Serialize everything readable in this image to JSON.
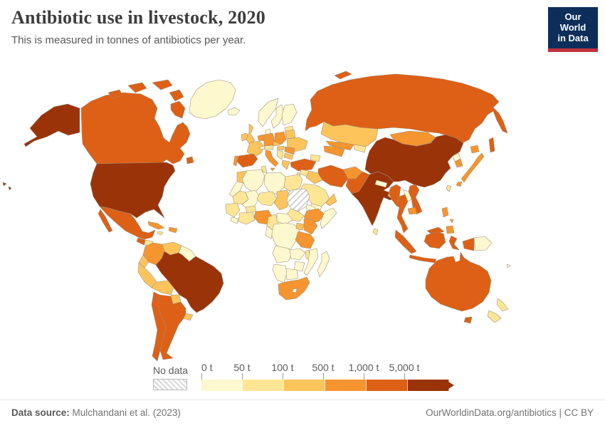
{
  "header": {
    "title": "Antibiotic use in livestock, 2020",
    "subtitle": "This is measured in tonnes of antibiotics per year.",
    "logo": {
      "line1": "Our World",
      "line2": "in Data",
      "bg_color": "#0d2e5a",
      "accent_color": "#c0313d"
    }
  },
  "footer": {
    "source_label": "Data source:",
    "source_value": " Mulchandani et al. (2023)",
    "link_text": "OurWorldinData.org/antibiotics | CC BY"
  },
  "chart_data": {
    "type": "choropleth-map",
    "title": "Antibiotic use in livestock, 2020",
    "unit": "tonnes of antibiotics per year",
    "year": 2020,
    "legend": {
      "no_data_label": "No data",
      "tick_labels": [
        "0 t",
        "50 t",
        "100 t",
        "500 t",
        "1,000 t",
        "5,000 t"
      ],
      "bin_colors": [
        "#fdf8cd",
        "#fee695",
        "#fdc45c",
        "#f6952f",
        "#dd6016",
        "#9b3309"
      ],
      "bin_ranges_tonnes": [
        [
          0,
          50
        ],
        [
          50,
          100
        ],
        [
          100,
          500
        ],
        [
          500,
          1000
        ],
        [
          1000,
          5000
        ],
        [
          5000,
          null
        ]
      ],
      "arrow_color": "#9b3309",
      "position": "bottom"
    },
    "countries": {
      "greenland": 1,
      "iceland": 1,
      "canada": 5,
      "usa": 6,
      "mexico": 5,
      "guatemala": 5,
      "honduras": 2,
      "nicaragua": 3,
      "costa-rica": 2,
      "panama": 3,
      "cuba": 4,
      "hispaniola": 4,
      "jamaica": 2,
      "colombia": 4,
      "venezuela": 3,
      "guyanas": 1,
      "ecuador": 3,
      "peru": 3,
      "brazil": 6,
      "bolivia": 3,
      "paraguay": 3,
      "uruguay": 3,
      "argentina": 5,
      "chile": 5,
      "ireland": 3,
      "uk": 3,
      "norway": 1,
      "sweden": 1,
      "finland": 1,
      "denmark": 1,
      "baltics": 2,
      "benelux": 4,
      "germany": 4,
      "france": 3,
      "spain": 5,
      "portugal": 4,
      "italy": 4,
      "sicily": 4,
      "switzerland": 1,
      "austria": 2,
      "czech": 3,
      "poland": 4,
      "belarus": 3,
      "ukraine": 3,
      "hungary": 3,
      "romania": 4,
      "balkans": 2,
      "bulgaria": 3,
      "greece": 3,
      "russia": 5,
      "kazakhstan": 3,
      "turkmenistan": 4,
      "uzbekistan": 4,
      "kyrgyz-tajik": 2,
      "caucasus": 2,
      "turkey": 5,
      "syria": 2,
      "levant": 2,
      "iraq": 3,
      "iran": 5,
      "afghanistan": 4,
      "pakistan": 5,
      "saudi-arabia": 2,
      "yemen": 1,
      "oman": 3,
      "india": 6,
      "nepal": 1,
      "bangladesh": 3,
      "sri-lanka": 2,
      "china": 6,
      "mongolia": 4,
      "north-korea": 1,
      "south-korea": 4,
      "japan": 4,
      "taiwan": 2,
      "myanmar": 5,
      "thailand": 5,
      "laos": 1,
      "vietnam": 5,
      "cambodia": 4,
      "malaysia": 5,
      "indonesia": 5,
      "papua-new-guinea": 1,
      "philippines": 4,
      "fiji": 1,
      "australia": 5,
      "new-zealand": 2,
      "morocco": 3,
      "western-sahara": 1,
      "algeria": 1,
      "tunisia": 2,
      "libya": 1,
      "egypt": 2,
      "mauritania": 2,
      "mali": 1,
      "niger": 2,
      "chad": 3,
      "sudan": "no-data",
      "south-sudan": 2,
      "eritrea": 1,
      "ethiopia": 4,
      "somalia": 1,
      "senegal-guinea": 2,
      "sierra-liberia": 1,
      "ivory-ghana": 2,
      "burkina": 2,
      "nigeria": 4,
      "cameroon": 2,
      "central-african-rep": 1,
      "drc": 1,
      "congo-gabon": 1,
      "uganda": 3,
      "kenya": 4,
      "tanzania": 4,
      "angola": 1,
      "zambia": 1,
      "malawi": 2,
      "mozambique": 1,
      "zimbabwe": 1,
      "botswana": 1,
      "namibia": 1,
      "south-africa": 4,
      "madagascar": 1
    }
  }
}
